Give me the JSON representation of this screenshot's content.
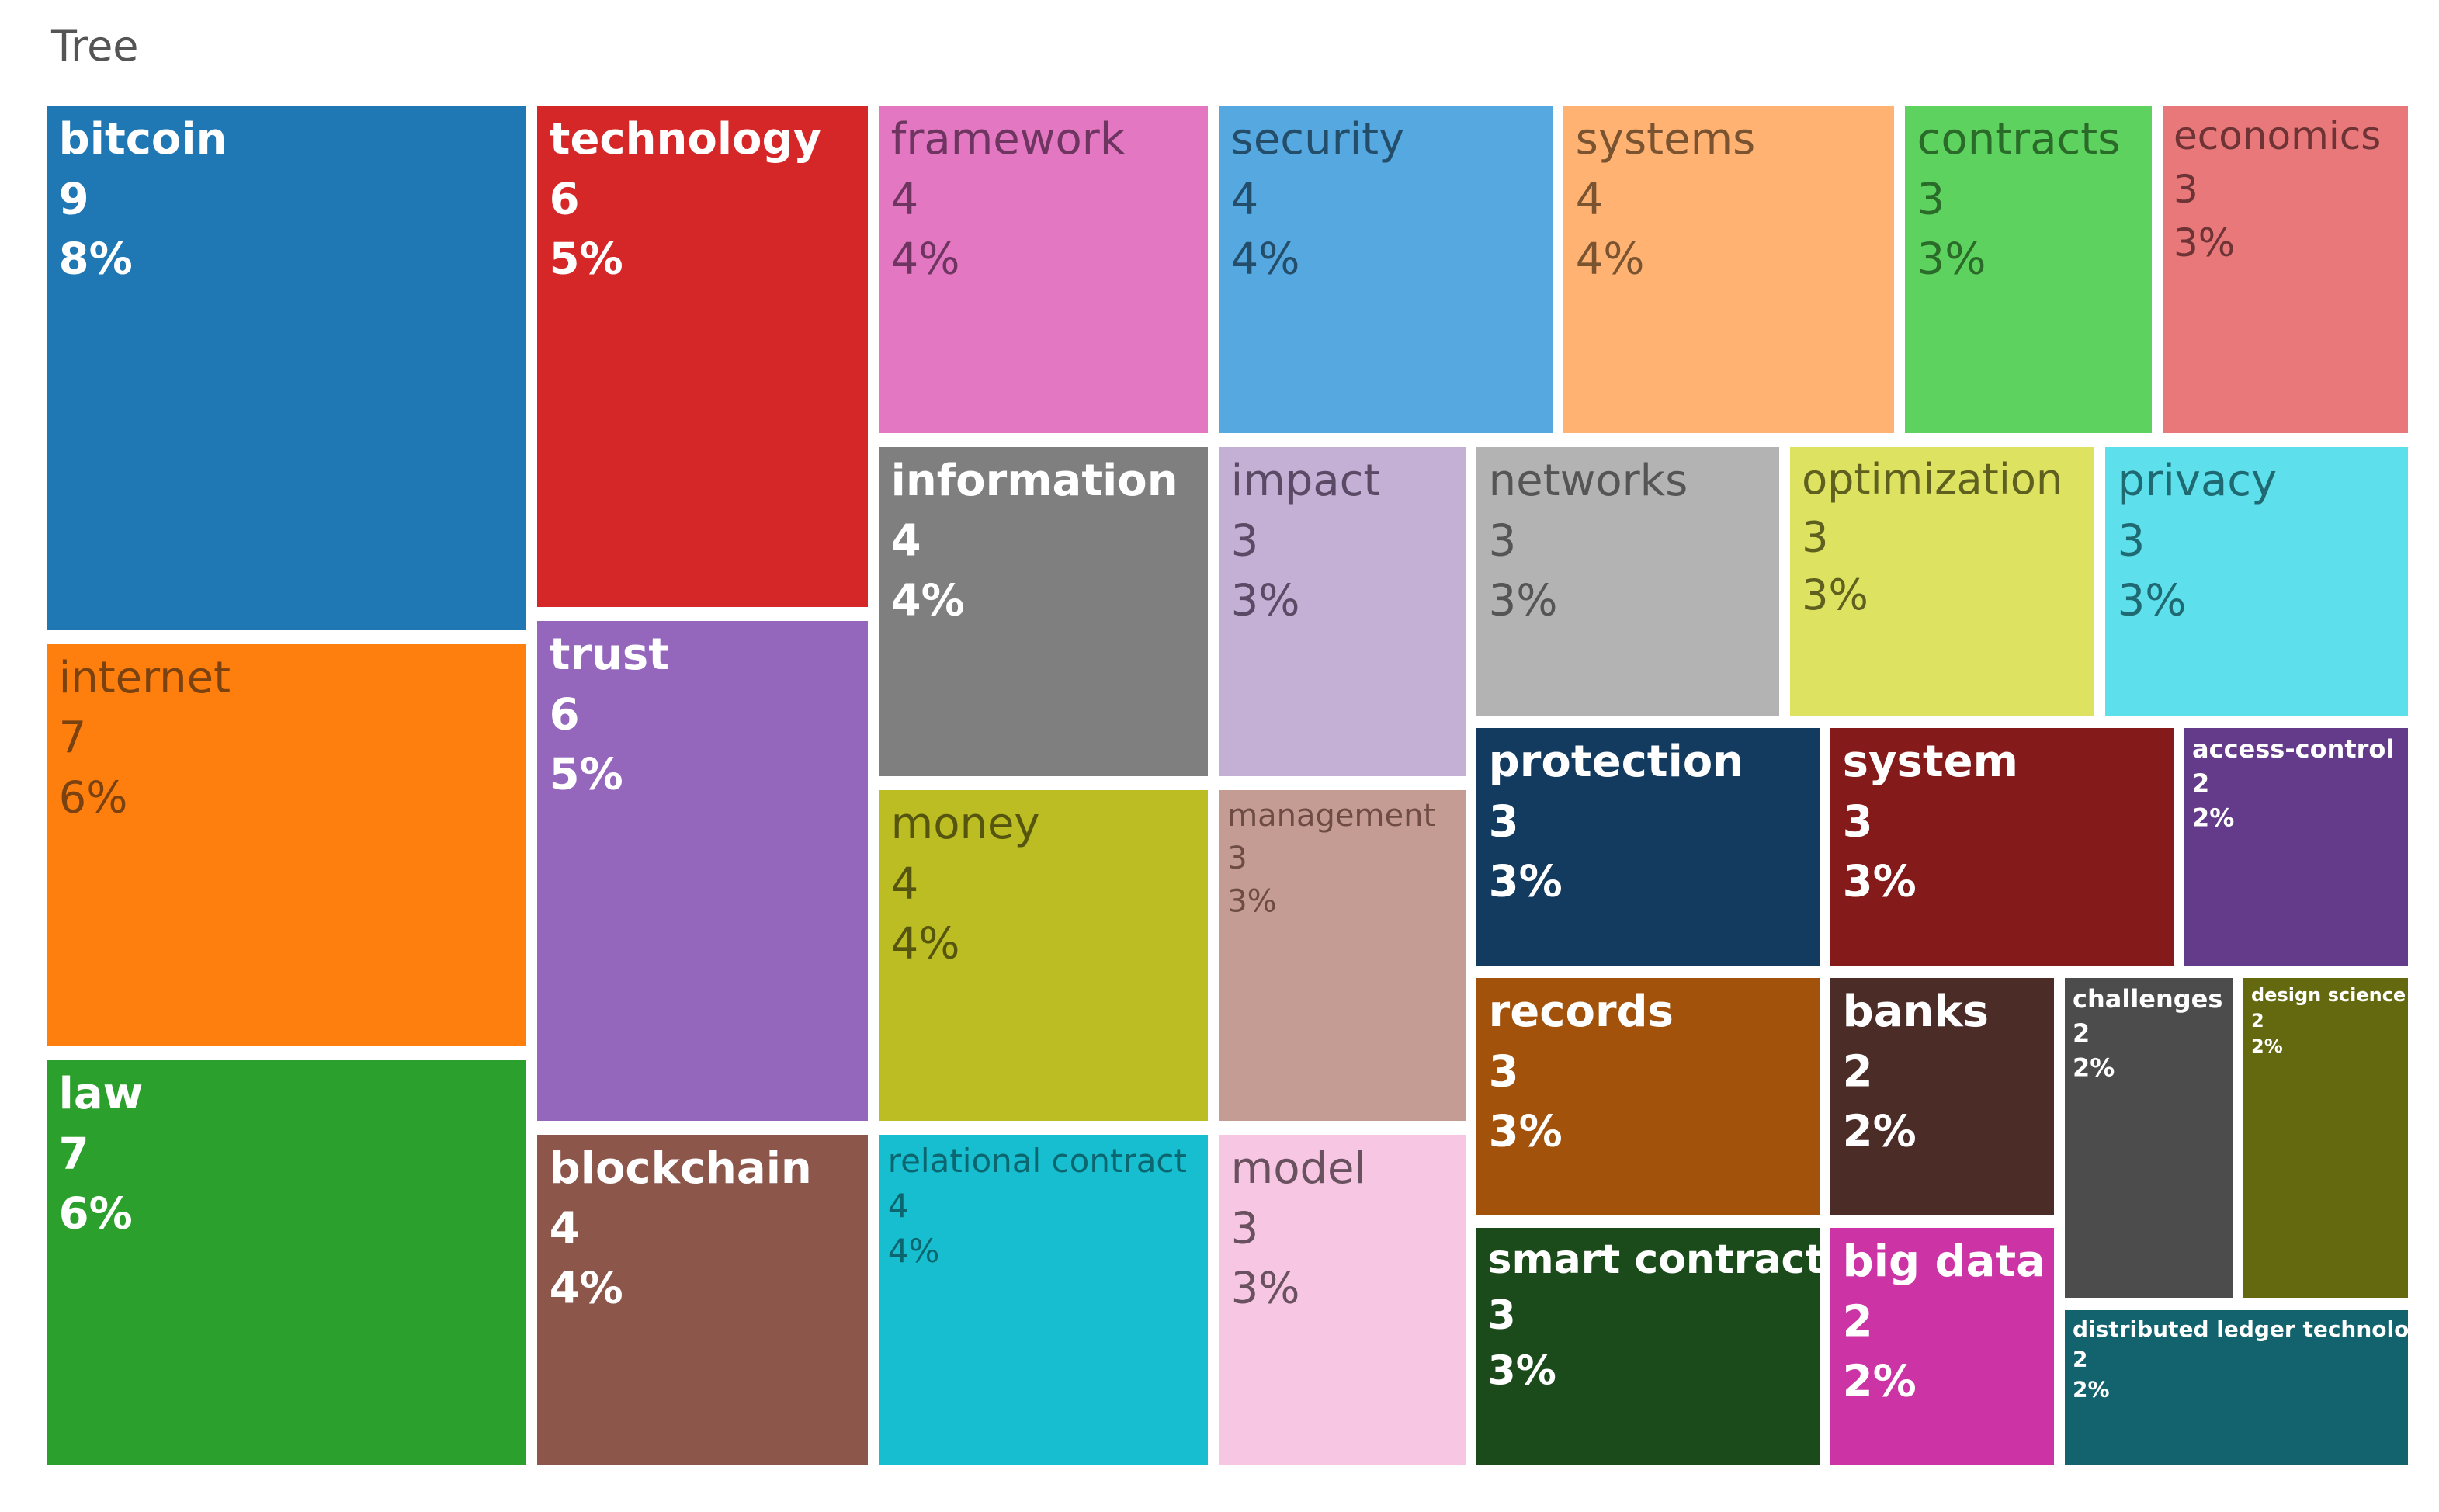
{
  "title": "Tree",
  "chart_data": {
    "type": "treemap",
    "title": "Tree",
    "items": [
      {
        "label": "bitcoin",
        "count": "9",
        "percent": "8%",
        "color": "#1f77b4",
        "text_color": "#ffffff"
      },
      {
        "label": "internet",
        "count": "7",
        "percent": "6%",
        "color": "#ff7f0e",
        "text_color": "#7a4210"
      },
      {
        "label": "law",
        "count": "7",
        "percent": "6%",
        "color": "#2ca02c",
        "text_color": "#ffffff"
      },
      {
        "label": "technology",
        "count": "6",
        "percent": "5%",
        "color": "#d62728",
        "text_color": "#ffffff"
      },
      {
        "label": "trust",
        "count": "6",
        "percent": "5%",
        "color": "#9467bd",
        "text_color": "#ffffff"
      },
      {
        "label": "blockchain",
        "count": "4",
        "percent": "4%",
        "color": "#8c564b",
        "text_color": "#ffffff"
      },
      {
        "label": "framework",
        "count": "4",
        "percent": "4%",
        "color": "#e377c2",
        "text_color": "#6e3560"
      },
      {
        "label": "information",
        "count": "4",
        "percent": "4%",
        "color": "#7f7f7f",
        "text_color": "#ffffff"
      },
      {
        "label": "money",
        "count": "4",
        "percent": "4%",
        "color": "#bcbd22",
        "text_color": "#55550f"
      },
      {
        "label": "relational contract",
        "count": "4",
        "percent": "4%",
        "color": "#17becf",
        "text_color": "#0b6670"
      },
      {
        "label": "security",
        "count": "4",
        "percent": "4%",
        "color": "#56a8e0",
        "text_color": "#244d6a"
      },
      {
        "label": "impact",
        "count": "3",
        "percent": "3%",
        "color": "#c5b0d5",
        "text_color": "#5a4a66"
      },
      {
        "label": "management",
        "count": "3",
        "percent": "3%",
        "color": "#c49c94",
        "text_color": "#6e4c45"
      },
      {
        "label": "model",
        "count": "3",
        "percent": "3%",
        "color": "#f7c6e2",
        "text_color": "#6a5160"
      },
      {
        "label": "systems",
        "count": "4",
        "percent": "4%",
        "color": "#ffb272",
        "text_color": "#7a5430"
      },
      {
        "label": "contracts",
        "count": "3",
        "percent": "3%",
        "color": "#5ed25e",
        "text_color": "#2a6b2a"
      },
      {
        "label": "economics",
        "count": "3",
        "percent": "3%",
        "color": "#e8787a",
        "text_color": "#6e3335"
      },
      {
        "label": "networks",
        "count": "3",
        "percent": "3%",
        "color": "#b3b3b3",
        "text_color": "#555555"
      },
      {
        "label": "optimization",
        "count": "3",
        "percent": "3%",
        "color": "#dde360",
        "text_color": "#5f6020"
      },
      {
        "label": "privacy",
        "count": "3",
        "percent": "3%",
        "color": "#5ee0ec",
        "text_color": "#1f6a72"
      },
      {
        "label": "protection",
        "count": "3",
        "percent": "3%",
        "color": "#123b5f",
        "text_color": "#ffffff"
      },
      {
        "label": "system",
        "count": "3",
        "percent": "3%",
        "color": "#841a1a",
        "text_color": "#ffffff"
      },
      {
        "label": "access-control",
        "count": "2",
        "percent": "2%",
        "color": "#643a8a",
        "text_color": "#ffffff"
      },
      {
        "label": "records",
        "count": "3",
        "percent": "3%",
        "color": "#a3520b",
        "text_color": "#ffffff"
      },
      {
        "label": "banks",
        "count": "2",
        "percent": "2%",
        "color": "#4b2c27",
        "text_color": "#ffffff"
      },
      {
        "label": "challenges",
        "count": "2",
        "percent": "2%",
        "color": "#4c4c4c",
        "text_color": "#ffffff"
      },
      {
        "label": "design science",
        "count": "2",
        "percent": "2%",
        "color": "#64680f",
        "text_color": "#ffffff"
      },
      {
        "label": "smart contracts",
        "count": "3",
        "percent": "3%",
        "color": "#1b4b1b",
        "text_color": "#ffffff"
      },
      {
        "label": "big data",
        "count": "2",
        "percent": "2%",
        "color": "#cc33a5",
        "text_color": "#ffffff"
      },
      {
        "label": "distributed ledger technology",
        "count": "2",
        "percent": "2%",
        "color": "#13636e",
        "text_color": "#ffffff"
      }
    ]
  }
}
